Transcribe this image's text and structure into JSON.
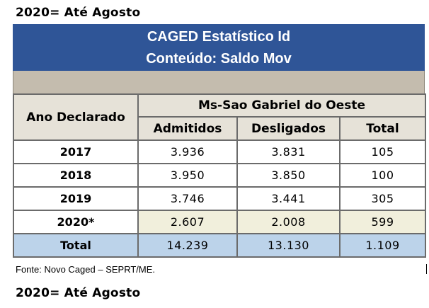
{
  "heading_top": "2020= Até Agosto",
  "banner": {
    "line1": "CAGED Estatístico Id",
    "line2": "Conteúdo: Saldo Mov",
    "color": "#2f5597"
  },
  "table": {
    "row_header": "Ano Declarado",
    "group_header": "Ms-Sao Gabriel do Oeste",
    "columns": [
      "Admitidos",
      "Desligados",
      "Total"
    ],
    "rows": [
      {
        "year": "2017",
        "admitidos": "3.936",
        "desligados": "3.831",
        "total": "105"
      },
      {
        "year": "2018",
        "admitidos": "3.950",
        "desligados": "3.850",
        "total": "100"
      },
      {
        "year": "2019",
        "admitidos": "3.746",
        "desligados": "3.441",
        "total": "305"
      },
      {
        "year": "2020*",
        "admitidos": "2.607",
        "desligados": "2.008",
        "total": "599"
      }
    ],
    "total_row": {
      "label": "Total",
      "admitidos": "14.239",
      "desligados": "13.130",
      "total": "1.109"
    }
  },
  "source": "Fonte: Novo Caged – SEPRT/ME.",
  "heading_bottom": "2020= Até Agosto"
}
